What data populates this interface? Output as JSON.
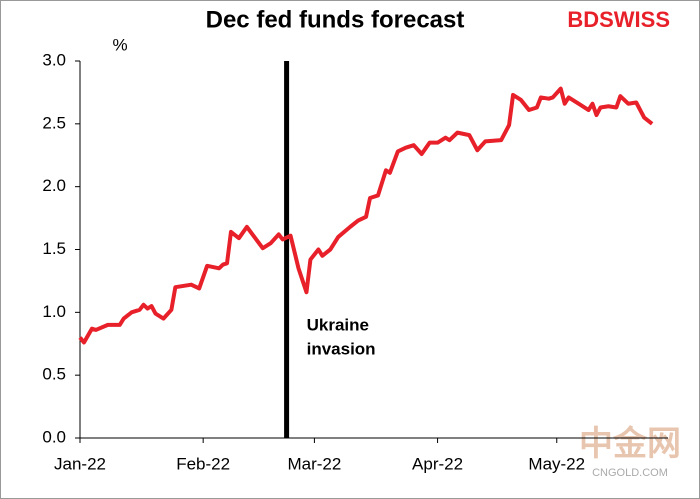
{
  "chart_data": {
    "type": "line",
    "title": "Dec fed funds forecast",
    "brand": "BDSWISS",
    "watermark": [
      "中金网",
      "CNGOLD.COM"
    ],
    "ylabel": "%",
    "x": [
      0,
      1,
      3,
      4,
      7,
      10,
      11,
      13,
      15,
      16,
      17,
      18,
      19,
      21,
      23,
      24,
      28,
      30,
      32,
      35,
      36,
      37,
      38,
      40,
      42,
      46,
      48,
      50,
      51,
      53,
      55,
      57,
      58,
      60,
      61,
      63,
      65,
      68,
      70,
      72,
      73,
      75,
      77,
      78,
      80,
      82,
      84,
      86,
      88,
      90,
      92,
      93,
      95,
      98,
      100,
      102,
      106,
      108,
      109,
      111,
      113,
      115,
      116,
      118,
      119,
      121,
      122,
      123,
      126,
      128,
      129,
      130,
      131,
      133,
      135,
      136,
      138,
      140,
      142,
      144
    ],
    "series": [
      {
        "name": "Dec fed funds forecast",
        "color": "#e8202a",
        "values": [
          0.8,
          0.76,
          0.87,
          0.86,
          0.9,
          0.9,
          0.95,
          1.0,
          1.02,
          1.06,
          1.03,
          1.05,
          0.99,
          0.95,
          1.02,
          1.2,
          1.22,
          1.19,
          1.37,
          1.35,
          1.38,
          1.39,
          1.64,
          1.59,
          1.68,
          1.51,
          1.55,
          1.62,
          1.58,
          1.61,
          1.35,
          1.16,
          1.42,
          1.5,
          1.45,
          1.5,
          1.6,
          1.68,
          1.73,
          1.76,
          1.91,
          1.93,
          2.13,
          2.11,
          2.28,
          2.31,
          2.33,
          2.26,
          2.35,
          2.35,
          2.39,
          2.37,
          2.43,
          2.41,
          2.29,
          2.36,
          2.37,
          2.49,
          2.73,
          2.69,
          2.61,
          2.63,
          2.71,
          2.7,
          2.71,
          2.78,
          2.66,
          2.71,
          2.65,
          2.61,
          2.66,
          2.57,
          2.63,
          2.64,
          2.63,
          2.72,
          2.66,
          2.67,
          2.55,
          2.5
        ]
      }
    ],
    "xlim": [
      0,
      148
    ],
    "xticks": [
      {
        "value": 0,
        "label": "Jan-22"
      },
      {
        "value": 31,
        "label": "Feb-22"
      },
      {
        "value": 59,
        "label": "Mar-22"
      },
      {
        "value": 90,
        "label": "Apr-22"
      },
      {
        "value": 120,
        "label": "May-22"
      }
    ],
    "ylim": [
      0,
      3
    ],
    "yticks": [
      {
        "value": 0,
        "label": "0.0"
      },
      {
        "value": 0.5,
        "label": "0.5"
      },
      {
        "value": 1,
        "label": "1.0"
      },
      {
        "value": 1.5,
        "label": "1.5"
      },
      {
        "value": 2,
        "label": "2.0"
      },
      {
        "value": 2.5,
        "label": "2.5"
      },
      {
        "value": 3,
        "label": "3.0"
      }
    ],
    "annotation": {
      "x": 52,
      "text": [
        "Ukraine",
        "invasion"
      ]
    }
  }
}
